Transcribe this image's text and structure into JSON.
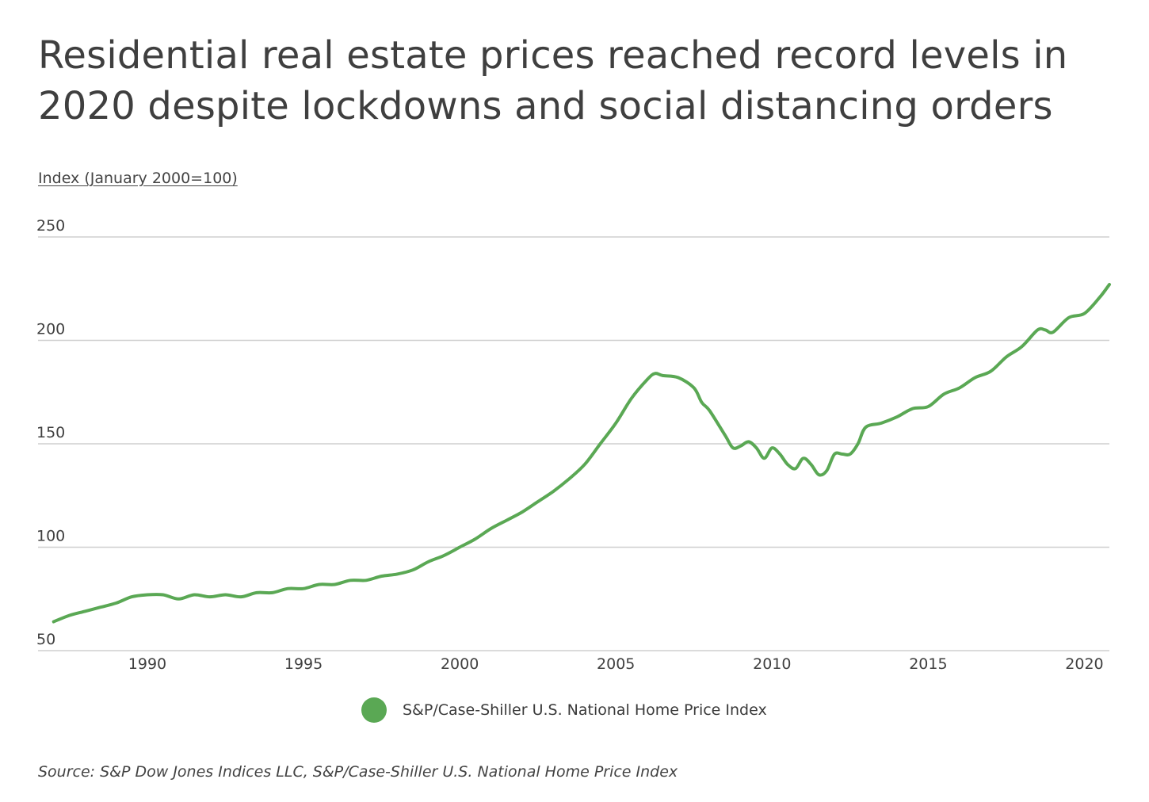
{
  "title": "Residential real estate prices reached record levels in 2020 despite lockdowns and social distancing orders",
  "source": "Source: S&P Dow Jones Indices LLC, S&P/Case-Shiller U.S. National Home Price Index",
  "colors": {
    "line": "#5aa854",
    "grid": "#cfcfcf",
    "text": "#404040"
  },
  "chart_data": {
    "type": "line",
    "title": "Residential real estate prices reached record levels in 2020 despite lockdowns and social distancing orders",
    "ylabel": "Index (January 2000=100)",
    "xlabel": "",
    "ylim": [
      50,
      250
    ],
    "xlim": [
      1986.5,
      2020.8
    ],
    "yticks": [
      50,
      100,
      150,
      200,
      250
    ],
    "xticks": [
      1990,
      1995,
      2000,
      2005,
      2010,
      2015,
      2020
    ],
    "legend": "bottom-center",
    "grid": true,
    "series": [
      {
        "name": "S&P/Case-Shiller U.S. National Home Price Index",
        "x": [
          1987.0,
          1987.5,
          1988.0,
          1988.5,
          1989.0,
          1989.5,
          1990.0,
          1990.5,
          1991.0,
          1991.5,
          1992.0,
          1992.5,
          1993.0,
          1993.5,
          1994.0,
          1994.5,
          1995.0,
          1995.5,
          1996.0,
          1996.5,
          1997.0,
          1997.5,
          1998.0,
          1998.5,
          1999.0,
          1999.5,
          2000.0,
          2000.5,
          2001.0,
          2001.5,
          2002.0,
          2002.5,
          2003.0,
          2003.5,
          2004.0,
          2004.5,
          2005.0,
          2005.5,
          2006.0,
          2006.25,
          2006.5,
          2007.0,
          2007.5,
          2007.75,
          2008.0,
          2008.5,
          2008.75,
          2009.0,
          2009.25,
          2009.5,
          2009.75,
          2010.0,
          2010.25,
          2010.5,
          2010.75,
          2011.0,
          2011.25,
          2011.5,
          2011.75,
          2012.0,
          2012.25,
          2012.5,
          2012.75,
          2013.0,
          2013.5,
          2014.0,
          2014.5,
          2015.0,
          2015.5,
          2016.0,
          2016.5,
          2017.0,
          2017.5,
          2018.0,
          2018.5,
          2018.75,
          2019.0,
          2019.5,
          2020.0,
          2020.5,
          2020.8
        ],
        "values": [
          64,
          67,
          69,
          71,
          73,
          76,
          77,
          77,
          75,
          77,
          76,
          77,
          76,
          78,
          78,
          80,
          80,
          82,
          82,
          84,
          84,
          86,
          87,
          89,
          93,
          96,
          100,
          104,
          109,
          113,
          117,
          122,
          127,
          133,
          140,
          150,
          160,
          172,
          181,
          184,
          183,
          182,
          177,
          170,
          166,
          154,
          148,
          149,
          151,
          148,
          143,
          148,
          145,
          140,
          138,
          143,
          140,
          135,
          137,
          145,
          145,
          145,
          150,
          158,
          160,
          163,
          167,
          168,
          174,
          177,
          182,
          185,
          192,
          197,
          205,
          205,
          204,
          211,
          213,
          221,
          227
        ]
      }
    ]
  }
}
